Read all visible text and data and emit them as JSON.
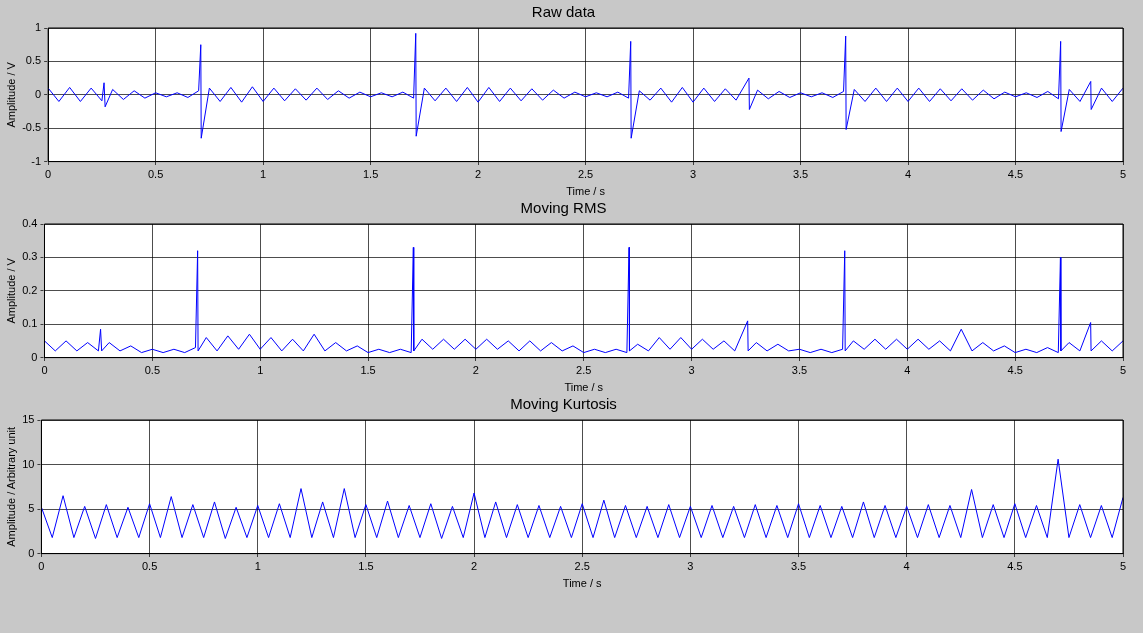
{
  "chart_data": [
    {
      "type": "line",
      "title": "Raw data",
      "xlabel": "Time / s",
      "ylabel": "Amplitude / V",
      "xlim": [
        0,
        5
      ],
      "xticks": [
        0,
        0.5,
        1,
        1.5,
        2,
        2.5,
        3,
        3.5,
        4,
        4.5,
        5
      ],
      "ylim": [
        -1,
        1
      ],
      "yticks": [
        -1,
        -0.5,
        0,
        0.5,
        1
      ],
      "grid": true,
      "legend": false,
      "marker": "none",
      "line_style": "solid",
      "x": [
        0,
        0.05,
        0.1,
        0.15,
        0.2,
        0.25,
        0.26,
        0.265,
        0.3,
        0.35,
        0.4,
        0.45,
        0.5,
        0.55,
        0.6,
        0.65,
        0.7,
        0.71,
        0.712,
        0.75,
        0.8,
        0.85,
        0.9,
        0.95,
        1.0,
        1.05,
        1.1,
        1.15,
        1.2,
        1.25,
        1.3,
        1.35,
        1.4,
        1.45,
        1.5,
        1.55,
        1.6,
        1.65,
        1.7,
        1.71,
        1.712,
        1.75,
        1.8,
        1.85,
        1.9,
        1.95,
        2.0,
        2.05,
        2.1,
        2.15,
        2.2,
        2.25,
        2.3,
        2.35,
        2.4,
        2.45,
        2.5,
        2.55,
        2.6,
        2.65,
        2.7,
        2.71,
        2.712,
        2.75,
        2.8,
        2.85,
        2.9,
        2.95,
        3.0,
        3.05,
        3.1,
        3.15,
        3.2,
        3.26,
        3.262,
        3.3,
        3.35,
        3.4,
        3.45,
        3.5,
        3.55,
        3.6,
        3.65,
        3.7,
        3.71,
        3.712,
        3.75,
        3.8,
        3.85,
        3.9,
        3.95,
        4.0,
        4.05,
        4.1,
        4.15,
        4.2,
        4.25,
        4.3,
        4.35,
        4.4,
        4.45,
        4.5,
        4.55,
        4.6,
        4.65,
        4.7,
        4.71,
        4.712,
        4.75,
        4.8,
        4.85,
        4.852,
        4.9,
        4.95,
        5.0
      ],
      "series": [
        {
          "color": "#0000ff",
          "values": [
            0.1,
            -0.1,
            0.11,
            -0.1,
            0.1,
            -0.09,
            0.18,
            -0.18,
            0.08,
            -0.07,
            0.06,
            -0.05,
            0.03,
            -0.03,
            0.03,
            -0.04,
            0.06,
            0.75,
            -0.65,
            0.1,
            -0.1,
            0.11,
            -0.11,
            0.12,
            -0.1,
            0.1,
            -0.09,
            0.09,
            -0.08,
            0.1,
            -0.07,
            0.06,
            -0.05,
            0.04,
            -0.03,
            0.03,
            -0.03,
            0.04,
            -0.05,
            0.92,
            -0.62,
            0.1,
            -0.09,
            0.1,
            -0.1,
            0.11,
            -0.11,
            0.11,
            -0.1,
            0.1,
            -0.09,
            0.09,
            -0.08,
            0.07,
            -0.05,
            0.04,
            -0.03,
            0.03,
            -0.03,
            0.04,
            -0.05,
            0.8,
            -0.65,
            0.06,
            -0.08,
            0.1,
            -0.11,
            0.11,
            -0.11,
            0.1,
            -0.1,
            0.09,
            -0.08,
            0.25,
            -0.22,
            0.07,
            -0.06,
            0.05,
            -0.04,
            0.03,
            -0.03,
            0.03,
            -0.04,
            0.05,
            0.88,
            -0.52,
            0.08,
            -0.1,
            0.1,
            -0.1,
            0.1,
            -0.1,
            0.1,
            -0.1,
            0.09,
            -0.09,
            0.09,
            -0.08,
            0.07,
            -0.06,
            0.04,
            -0.03,
            0.03,
            -0.04,
            0.05,
            -0.06,
            0.8,
            -0.55,
            0.08,
            -0.1,
            0.2,
            -0.22,
            0.1,
            -0.1,
            0.1
          ]
        }
      ]
    },
    {
      "type": "line",
      "title": "Moving RMS",
      "xlabel": "Time / s",
      "ylabel": "Amplitude / V",
      "xlim": [
        0,
        5
      ],
      "xticks": [
        0,
        0.5,
        1,
        1.5,
        2,
        2.5,
        3,
        3.5,
        4,
        4.5,
        5
      ],
      "ylim": [
        0,
        0.4
      ],
      "yticks": [
        0,
        0.1,
        0.2,
        0.3,
        0.4
      ],
      "grid": true,
      "legend": false,
      "marker": "none",
      "line_style": "solid",
      "x": [
        0,
        0.05,
        0.1,
        0.15,
        0.2,
        0.25,
        0.26,
        0.265,
        0.3,
        0.35,
        0.4,
        0.45,
        0.5,
        0.55,
        0.6,
        0.65,
        0.7,
        0.71,
        0.712,
        0.75,
        0.8,
        0.85,
        0.9,
        0.95,
        1.0,
        1.05,
        1.1,
        1.15,
        1.2,
        1.25,
        1.3,
        1.35,
        1.4,
        1.45,
        1.5,
        1.55,
        1.6,
        1.65,
        1.7,
        1.71,
        1.712,
        1.75,
        1.8,
        1.85,
        1.9,
        1.95,
        2.0,
        2.05,
        2.1,
        2.15,
        2.2,
        2.25,
        2.3,
        2.35,
        2.4,
        2.45,
        2.5,
        2.55,
        2.6,
        2.65,
        2.7,
        2.71,
        2.712,
        2.75,
        2.8,
        2.85,
        2.9,
        2.95,
        3.0,
        3.05,
        3.1,
        3.15,
        3.2,
        3.26,
        3.262,
        3.3,
        3.35,
        3.4,
        3.45,
        3.5,
        3.55,
        3.6,
        3.65,
        3.7,
        3.71,
        3.712,
        3.75,
        3.8,
        3.85,
        3.9,
        3.95,
        4.0,
        4.05,
        4.1,
        4.15,
        4.2,
        4.25,
        4.3,
        4.35,
        4.4,
        4.45,
        4.5,
        4.55,
        4.6,
        4.65,
        4.7,
        4.71,
        4.712,
        4.75,
        4.8,
        4.85,
        4.852,
        4.9,
        4.95,
        5.0
      ],
      "series": [
        {
          "color": "#0000ff",
          "values": [
            0.05,
            0.02,
            0.05,
            0.02,
            0.045,
            0.02,
            0.085,
            0.02,
            0.045,
            0.02,
            0.035,
            0.015,
            0.025,
            0.015,
            0.025,
            0.015,
            0.03,
            0.32,
            0.02,
            0.06,
            0.02,
            0.065,
            0.025,
            0.07,
            0.025,
            0.06,
            0.02,
            0.055,
            0.02,
            0.07,
            0.02,
            0.045,
            0.02,
            0.035,
            0.015,
            0.025,
            0.015,
            0.025,
            0.015,
            0.33,
            0.02,
            0.055,
            0.025,
            0.055,
            0.025,
            0.055,
            0.025,
            0.055,
            0.025,
            0.05,
            0.02,
            0.05,
            0.02,
            0.045,
            0.02,
            0.035,
            0.015,
            0.025,
            0.015,
            0.025,
            0.015,
            0.33,
            0.02,
            0.04,
            0.02,
            0.06,
            0.025,
            0.06,
            0.025,
            0.055,
            0.025,
            0.05,
            0.02,
            0.11,
            0.02,
            0.045,
            0.02,
            0.04,
            0.02,
            0.025,
            0.015,
            0.025,
            0.015,
            0.025,
            0.32,
            0.02,
            0.05,
            0.025,
            0.055,
            0.025,
            0.055,
            0.025,
            0.055,
            0.025,
            0.05,
            0.02,
            0.085,
            0.02,
            0.045,
            0.02,
            0.035,
            0.015,
            0.025,
            0.015,
            0.03,
            0.015,
            0.3,
            0.02,
            0.045,
            0.02,
            0.105,
            0.02,
            0.05,
            0.02,
            0.05
          ]
        }
      ]
    },
    {
      "type": "line",
      "title": "Moving Kurtosis",
      "xlabel": "Time / s",
      "ylabel": "Amplitude / Arbitrary unit",
      "xlim": [
        0,
        5
      ],
      "xticks": [
        0,
        0.5,
        1,
        1.5,
        2,
        2.5,
        3,
        3.5,
        4,
        4.5,
        5
      ],
      "ylim": [
        0,
        15
      ],
      "yticks": [
        0,
        5,
        10,
        15
      ],
      "grid": true,
      "legend": false,
      "marker": "none",
      "line_style": "solid",
      "x": [
        0,
        0.05,
        0.1,
        0.15,
        0.2,
        0.25,
        0.3,
        0.35,
        0.4,
        0.45,
        0.5,
        0.55,
        0.6,
        0.65,
        0.7,
        0.75,
        0.8,
        0.85,
        0.9,
        0.95,
        1.0,
        1.05,
        1.1,
        1.15,
        1.2,
        1.25,
        1.3,
        1.35,
        1.4,
        1.45,
        1.5,
        1.55,
        1.6,
        1.65,
        1.7,
        1.75,
        1.8,
        1.85,
        1.9,
        1.95,
        2.0,
        2.05,
        2.1,
        2.15,
        2.2,
        2.25,
        2.3,
        2.35,
        2.4,
        2.45,
        2.5,
        2.55,
        2.6,
        2.65,
        2.7,
        2.75,
        2.8,
        2.85,
        2.9,
        2.95,
        3.0,
        3.05,
        3.1,
        3.15,
        3.2,
        3.25,
        3.3,
        3.35,
        3.4,
        3.45,
        3.5,
        3.55,
        3.6,
        3.65,
        3.7,
        3.75,
        3.8,
        3.85,
        3.9,
        3.95,
        4.0,
        4.05,
        4.1,
        4.15,
        4.2,
        4.25,
        4.3,
        4.35,
        4.4,
        4.45,
        4.5,
        4.55,
        4.6,
        4.65,
        4.7,
        4.75,
        4.8,
        4.85,
        4.9,
        4.95,
        5.0
      ],
      "series": [
        {
          "color": "#0000ff",
          "values": [
            5.2,
            1.8,
            6.5,
            1.8,
            5.3,
            1.7,
            5.5,
            1.8,
            5.2,
            1.8,
            5.6,
            1.8,
            6.4,
            1.8,
            5.5,
            1.8,
            5.8,
            1.7,
            5.2,
            1.8,
            5.4,
            1.8,
            5.6,
            1.8,
            7.3,
            1.8,
            5.8,
            1.8,
            7.3,
            1.8,
            5.5,
            1.8,
            5.9,
            1.8,
            5.4,
            1.8,
            5.6,
            1.7,
            5.3,
            1.8,
            6.8,
            1.8,
            5.8,
            1.8,
            5.5,
            1.8,
            5.4,
            1.8,
            5.3,
            1.8,
            5.6,
            1.8,
            6,
            1.8,
            5.4,
            1.8,
            5.3,
            1.8,
            5.5,
            1.8,
            5.3,
            1.8,
            5.4,
            1.8,
            5.3,
            1.8,
            5.5,
            1.8,
            5.4,
            1.8,
            5.6,
            1.8,
            5.4,
            1.8,
            5.3,
            1.8,
            5.8,
            1.8,
            5.4,
            1.8,
            5.3,
            1.8,
            5.5,
            1.8,
            5.4,
            1.8,
            7.2,
            1.8,
            5.5,
            1.8,
            5.6,
            1.8,
            5.4,
            1.8,
            10.6,
            1.8,
            5.5,
            1.8,
            5.4,
            1.8,
            6.3
          ]
        }
      ]
    }
  ]
}
